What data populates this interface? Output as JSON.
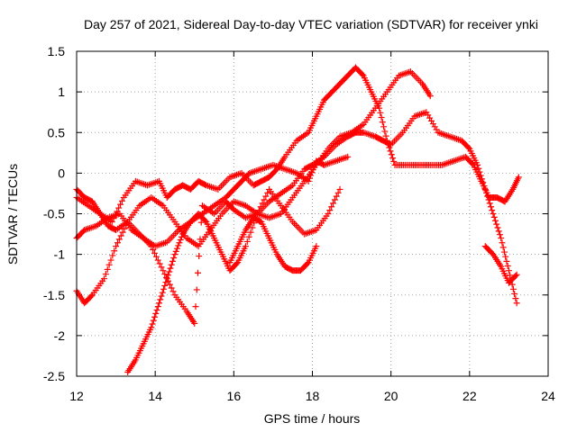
{
  "chart_data": {
    "type": "scatter",
    "title": "Day 257 of 2021, Sidereal Day-to-day VTEC variation (SDTVAR) for receiver ynki",
    "xlabel": "GPS time / hours",
    "ylabel": "SDTVAR / TECUs",
    "xlim": [
      12,
      24
    ],
    "ylim": [
      -2.5,
      1.5
    ],
    "x_ticks": [
      12,
      14,
      16,
      18,
      20,
      22,
      24
    ],
    "y_ticks": [
      -2.5,
      -2,
      -1.5,
      -1,
      -0.5,
      0,
      0.5,
      1,
      1.5
    ],
    "grid": true,
    "legend": "none",
    "marker": "plus",
    "color": "#ff0000",
    "series": [
      {
        "x": [
          12.0,
          12.3,
          12.6,
          12.9,
          13.2,
          13.5,
          13.8,
          14.1,
          14.3,
          14.5,
          14.7,
          14.9,
          15.1,
          15.3,
          15.6,
          15.9,
          16.2,
          16.5,
          16.7,
          16.9,
          17.1,
          17.3,
          17.6,
          17.9,
          18.1,
          18.3,
          18.5,
          18.7,
          18.9,
          19.1,
          19.3,
          19.5,
          19.7,
          19.9,
          20.1,
          20.4,
          20.7,
          21.0,
          21.3,
          21.6,
          21.9,
          22.1,
          22.3,
          22.5,
          22.7,
          22.9,
          23.1,
          23.25
        ],
        "y": [
          -0.3,
          -0.4,
          -0.5,
          -0.6,
          -0.3,
          -0.1,
          -0.15,
          -0.1,
          -0.3,
          -0.2,
          -0.15,
          -0.2,
          -0.1,
          -0.15,
          -0.2,
          -0.05,
          0.0,
          -0.15,
          -0.1,
          -0.05,
          0.05,
          0.2,
          0.4,
          0.5,
          0.7,
          0.9,
          1.0,
          1.1,
          1.2,
          1.3,
          1.2,
          1.0,
          0.8,
          0.4,
          0.1,
          0.1,
          0.1,
          0.1,
          0.1,
          0.15,
          0.2,
          0.1,
          -0.1,
          -0.3,
          -0.3,
          -0.35,
          -0.2,
          -0.05
        ]
      },
      {
        "x": [
          12.0,
          12.2,
          12.4,
          12.6,
          12.8,
          13.0,
          13.3,
          13.6,
          13.9,
          14.2,
          14.5,
          14.8,
          15.1,
          15.4,
          15.7,
          16.0,
          16.3,
          16.6,
          16.9,
          17.2,
          17.5,
          17.8,
          18.1,
          18.4,
          18.7,
          19.0,
          19.3,
          19.6,
          19.9,
          20.2,
          20.5,
          20.8,
          21.0
        ],
        "y": [
          -0.2,
          -0.3,
          -0.35,
          -0.5,
          -0.65,
          -0.7,
          -0.6,
          -0.4,
          -0.3,
          -0.4,
          -0.6,
          -0.8,
          -0.9,
          -0.7,
          -0.5,
          -0.35,
          -0.4,
          -0.5,
          -0.55,
          -0.5,
          -0.3,
          -0.1,
          0.1,
          0.3,
          0.45,
          0.5,
          0.6,
          0.8,
          1.0,
          1.2,
          1.25,
          1.1,
          0.95
        ]
      },
      {
        "x": [
          12.0,
          12.2,
          12.4,
          12.7,
          13.0,
          13.3,
          13.6,
          13.9,
          14.2,
          14.5,
          14.8,
          15.0,
          15.2,
          15.5,
          15.8,
          16.0,
          16.3,
          16.6,
          16.9,
          17.2,
          17.5,
          17.8,
          18.0,
          18.3,
          18.6,
          18.9,
          19.1,
          19.3,
          19.6,
          19.8,
          20.0,
          20.3,
          20.6,
          20.9,
          21.2,
          21.5,
          21.8,
          22.0,
          22.2,
          22.4,
          22.6,
          22.8,
          23.0,
          23.2
        ],
        "y": [
          -1.45,
          -1.6,
          -1.5,
          -1.3,
          -0.9,
          -0.6,
          -0.75,
          -0.9,
          -1.2,
          -1.5,
          -1.7,
          -1.85,
          -0.4,
          -0.5,
          -0.35,
          -0.45,
          -0.55,
          -0.5,
          -0.35,
          -0.25,
          -0.15,
          0.05,
          0.1,
          0.2,
          0.35,
          0.45,
          0.5,
          0.5,
          0.45,
          0.4,
          0.35,
          0.5,
          0.7,
          0.75,
          0.5,
          0.45,
          0.4,
          0.3,
          0.1,
          -0.2,
          -0.5,
          -0.8,
          -1.2,
          -1.6
        ]
      },
      {
        "x": [
          12.0,
          12.2,
          12.5,
          12.8,
          13.1,
          13.4,
          13.7,
          14.0,
          14.3,
          14.6,
          14.9,
          15.2,
          15.5,
          15.8,
          16.0,
          16.2,
          16.4,
          16.7,
          17.0,
          17.3,
          17.6,
          17.9,
          18.1,
          18.3,
          18.6,
          18.9
        ],
        "y": [
          -0.8,
          -0.7,
          -0.65,
          -0.55,
          -0.5,
          -0.7,
          -0.8,
          -0.9,
          -0.85,
          -0.7,
          -0.6,
          -0.5,
          -0.4,
          -0.3,
          -0.2,
          -0.1,
          0.0,
          0.05,
          0.1,
          0.05,
          0.0,
          -0.1,
          0.15,
          0.1,
          0.15,
          0.2
        ]
      },
      {
        "x": [
          13.3,
          13.5,
          13.7,
          13.9,
          14.1,
          14.3,
          14.5,
          14.7,
          14.9,
          15.1,
          15.3,
          15.5,
          15.7,
          15.9,
          16.1,
          16.3,
          16.6,
          16.9,
          17.2,
          17.5,
          17.8,
          18.1,
          18.4,
          18.7
        ],
        "y": [
          -2.45,
          -2.3,
          -2.1,
          -1.9,
          -1.6,
          -1.3,
          -1.0,
          -0.75,
          -0.6,
          -0.5,
          -0.6,
          -0.8,
          -1.0,
          -1.2,
          -1.1,
          -0.9,
          -0.5,
          -0.2,
          -0.4,
          -0.6,
          -0.75,
          -0.7,
          -0.5,
          -0.2
        ]
      },
      {
        "x": [
          15.9,
          16.1,
          16.3,
          16.5,
          16.7,
          16.9,
          17.1,
          17.3,
          17.5,
          17.7,
          17.9,
          18.1
        ],
        "y": [
          -1.1,
          -0.9,
          -0.7,
          -0.55,
          -0.6,
          -0.8,
          -1.0,
          -1.15,
          -1.2,
          -1.2,
          -1.1,
          -0.9
        ]
      },
      {
        "x": [
          22.4,
          22.6,
          22.8,
          23.0,
          23.2
        ],
        "y": [
          -0.9,
          -1.0,
          -1.15,
          -1.35,
          -1.25
        ]
      }
    ]
  }
}
